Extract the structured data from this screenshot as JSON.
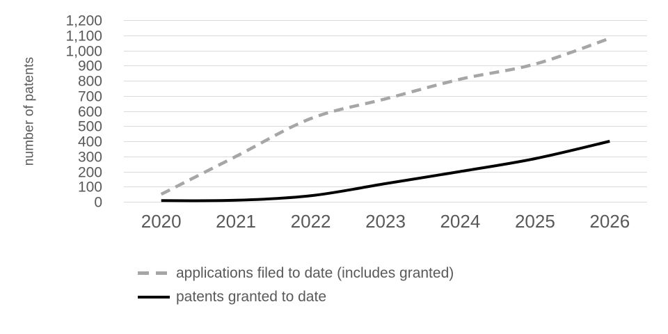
{
  "chart_data": {
    "type": "line",
    "title": "",
    "xlabel": "",
    "ylabel": "number of patents",
    "categories": [
      "2020",
      "2021",
      "2022",
      "2023",
      "2024",
      "2025",
      "2026"
    ],
    "series": [
      {
        "name": "applications filed to date (includes granted)",
        "values": [
          50,
          300,
          550,
          680,
          810,
          910,
          1080
        ],
        "color": "#a6a6a6",
        "style": "dashed",
        "smooth": true
      },
      {
        "name": "patents granted to date",
        "values": [
          8,
          10,
          40,
          120,
          200,
          285,
          400
        ],
        "color": "#000000",
        "style": "solid",
        "smooth": true
      }
    ],
    "ylim": [
      0,
      1200
    ],
    "ytick_step": 100,
    "y_tick_labels": [
      "0",
      "100",
      "200",
      "300",
      "400",
      "500",
      "600",
      "700",
      "800",
      "900",
      "1,000",
      "1,100",
      "1,200"
    ],
    "grid": true,
    "legend_position": "bottom-left",
    "colors": {
      "grid": "#d9d9d9",
      "tick_text": "#595959",
      "background": "#ffffff"
    }
  }
}
